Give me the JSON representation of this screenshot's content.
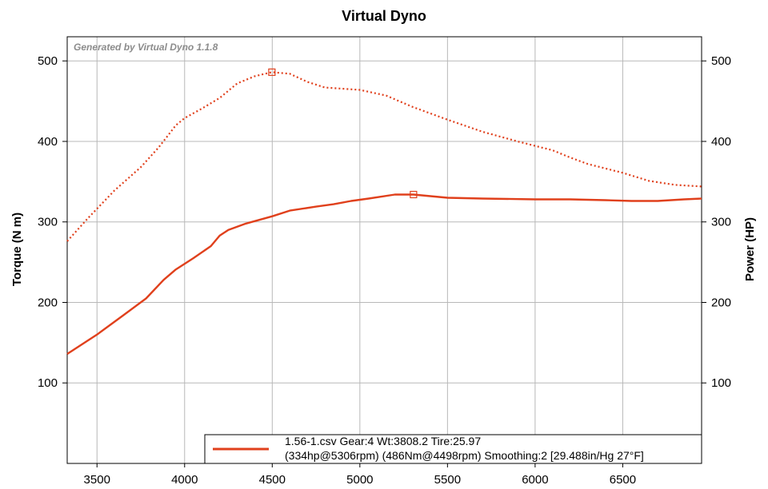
{
  "chart_data": {
    "type": "line",
    "title": "Virtual Dyno",
    "watermark": "Generated by Virtual Dyno 1.1.8",
    "ylabel_left": "Torque (N m)",
    "ylabel_right": "Power (HP)",
    "xlabel": "",
    "xlim": [
      3330,
      6950
    ],
    "ylim": [
      0,
      530
    ],
    "x_ticks": [
      3500,
      4000,
      4500,
      5000,
      5500,
      6000,
      6500
    ],
    "y_ticks": [
      100,
      200,
      300,
      400,
      500
    ],
    "grid": true,
    "line_color": "#e0401c",
    "series": [
      {
        "axis": "left",
        "style": "solid",
        "points": [
          [
            3330,
            136
          ],
          [
            3500,
            160
          ],
          [
            3650,
            184
          ],
          [
            3780,
            205
          ],
          [
            3880,
            228
          ],
          [
            3950,
            241
          ],
          [
            4050,
            255
          ],
          [
            4150,
            270
          ],
          [
            4200,
            283
          ],
          [
            4250,
            290
          ],
          [
            4350,
            298
          ],
          [
            4500,
            307
          ],
          [
            4600,
            314
          ],
          [
            4750,
            319
          ],
          [
            4850,
            322
          ],
          [
            4950,
            326
          ],
          [
            5050,
            329
          ],
          [
            5200,
            334
          ],
          [
            5306,
            334
          ],
          [
            5500,
            330
          ],
          [
            5700,
            329
          ],
          [
            6000,
            328
          ],
          [
            6200,
            328
          ],
          [
            6400,
            327
          ],
          [
            6550,
            326
          ],
          [
            6700,
            326
          ],
          [
            6850,
            328
          ],
          [
            6950,
            329
          ]
        ],
        "peak_marker": [
          5306,
          334
        ]
      },
      {
        "axis": "right",
        "style": "dotted",
        "points": [
          [
            3330,
            276
          ],
          [
            3450,
            305
          ],
          [
            3600,
            339
          ],
          [
            3750,
            368
          ],
          [
            3850,
            392
          ],
          [
            3900,
            406
          ],
          [
            3950,
            420
          ],
          [
            4000,
            429
          ],
          [
            4100,
            441
          ],
          [
            4200,
            454
          ],
          [
            4300,
            472
          ],
          [
            4400,
            481
          ],
          [
            4498,
            486
          ],
          [
            4600,
            484
          ],
          [
            4700,
            474
          ],
          [
            4800,
            467
          ],
          [
            5000,
            464
          ],
          [
            5150,
            457
          ],
          [
            5300,
            443
          ],
          [
            5500,
            427
          ],
          [
            5700,
            412
          ],
          [
            5900,
            400
          ],
          [
            6100,
            389
          ],
          [
            6200,
            380
          ],
          [
            6300,
            372
          ],
          [
            6500,
            361
          ],
          [
            6650,
            351
          ],
          [
            6800,
            346
          ],
          [
            6950,
            344
          ]
        ],
        "peak_marker": [
          4498,
          486
        ]
      }
    ],
    "legend": {
      "placement": "bottom-right",
      "line1": "1.56-1.csv Gear:4 Wt:3808.2 Tire:25.97",
      "line2": "(334hp@5306rpm) (486Nm@4498rpm) Smoothing:2 [29.488in/Hg 27°F]"
    }
  }
}
